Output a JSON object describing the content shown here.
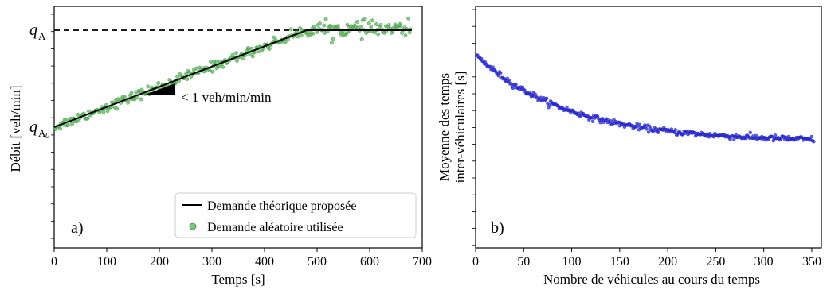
{
  "chart_data": [
    {
      "type": "scatter",
      "panel_letter": "a)",
      "xlabel": "Temps [s]",
      "ylabel": "Débit [veh/min]",
      "xlim": [
        0,
        700
      ],
      "x_ticks": [
        "0",
        "100",
        "200",
        "300",
        "400",
        "500",
        "600",
        "700"
      ],
      "y_tick_labels_shown": false,
      "qA_label": "q",
      "qA_sub": "A",
      "qA0_label": "q",
      "qA0_sub": "A",
      "qA0_sub2": "0",
      "slope_annotation": "< 1 veh/min/min",
      "legend_position": "lower right",
      "legend": [
        {
          "label": "Demande théorique proposée",
          "marker": "line",
          "color": "#000000"
        },
        {
          "label": "Demande aléatoire utilisée",
          "marker": "dot",
          "color": "#5cb85c"
        }
      ],
      "series": [
        {
          "name": "Demande théorique proposée",
          "kind": "line",
          "x": [
            0,
            480,
            680
          ],
          "y": [
            0.0,
            1.0,
            1.0
          ]
        },
        {
          "name": "Demande aléatoire utilisée",
          "kind": "scatter",
          "color": "#5cb85c",
          "x_range": [
            0,
            680
          ],
          "n_points": 300,
          "follows": "theoretical line with noise"
        }
      ],
      "dashed_reference": {
        "y": 1.0,
        "label": "qA"
      }
    },
    {
      "type": "scatter",
      "panel_letter": "b)",
      "xlabel": "Nombre de véhicules au cours du temps",
      "ylabel_line1": "Moyenne des temps",
      "ylabel_line2": "inter-véhiculaires [s]",
      "xlim": [
        0,
        360
      ],
      "x_ticks": [
        "0",
        "50",
        "100",
        "150",
        "200",
        "250",
        "300",
        "350"
      ],
      "y_tick_labels_shown": false,
      "series": [
        {
          "name": "",
          "kind": "scatter",
          "color": "#2b2bdb",
          "x_range": [
            0,
            352
          ],
          "n_points": 352,
          "trend": "decays from about 0.80 to about 0.44 of the axis height, flat after about 240"
        }
      ]
    }
  ]
}
